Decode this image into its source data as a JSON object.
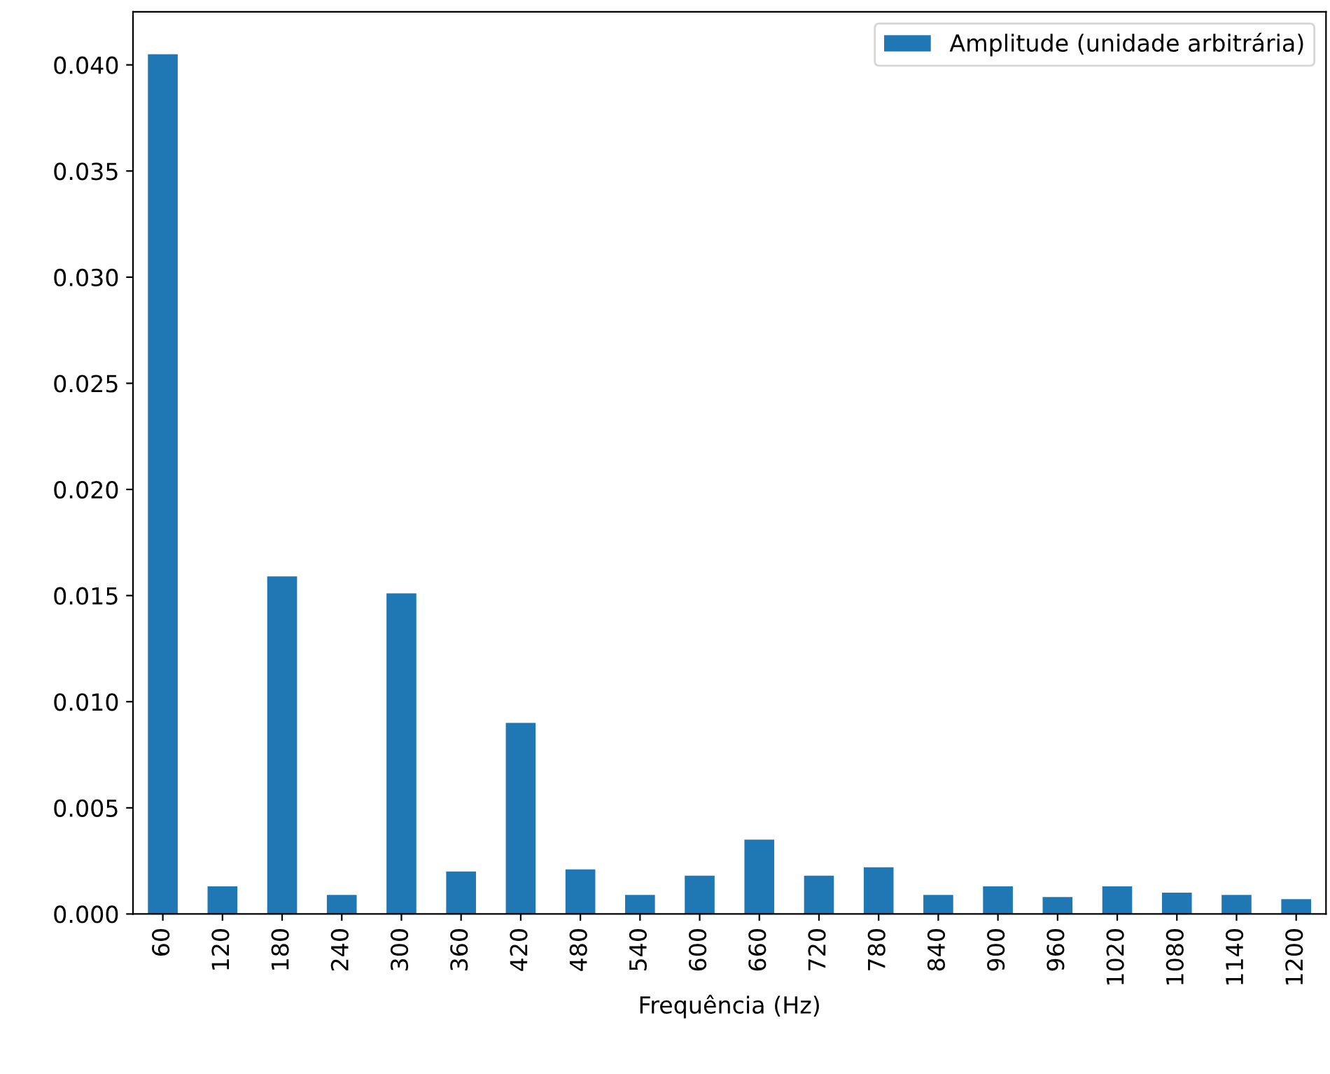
{
  "chart_data": {
    "type": "bar",
    "xlabel": "Frequência (Hz)",
    "categories": [
      "60",
      "120",
      "180",
      "240",
      "300",
      "360",
      "420",
      "480",
      "540",
      "600",
      "660",
      "720",
      "780",
      "840",
      "900",
      "960",
      "1020",
      "1080",
      "1140",
      "1200"
    ],
    "series": [
      {
        "name": "Amplitude (unidade arbitrária)",
        "color": "#1f77b4",
        "values": [
          0.0405,
          0.0013,
          0.0159,
          0.0009,
          0.0151,
          0.002,
          0.009,
          0.0021,
          0.0009,
          0.0018,
          0.0035,
          0.0018,
          0.0022,
          0.0009,
          0.0013,
          0.0008,
          0.0013,
          0.001,
          0.0009,
          0.0007
        ]
      }
    ],
    "ylim": [
      0,
      0.0425
    ],
    "yticks": [
      {
        "value": 0,
        "label": "0.000"
      },
      {
        "value": 0.005,
        "label": "0.005"
      },
      {
        "value": 0.01,
        "label": "0.010"
      },
      {
        "value": 0.015,
        "label": "0.015"
      },
      {
        "value": 0.02,
        "label": "0.020"
      },
      {
        "value": 0.025,
        "label": "0.025"
      },
      {
        "value": 0.03,
        "label": "0.030"
      },
      {
        "value": 0.035,
        "label": "0.035"
      },
      {
        "value": 0.04,
        "label": "0.040"
      }
    ],
    "legend": "top right",
    "grid": false
  }
}
